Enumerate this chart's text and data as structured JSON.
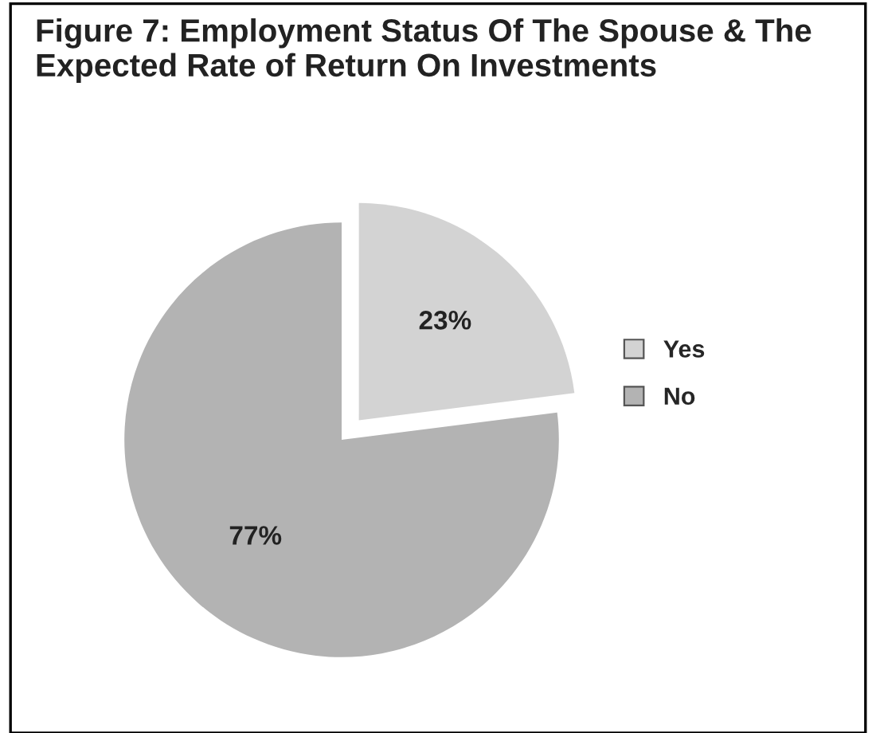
{
  "chart_data": {
    "type": "pie",
    "title": "Figure 7: Employment Status Of The Spouse & The Expected Rate of Return On Investments",
    "categories": [
      "Yes",
      "No"
    ],
    "values": [
      23,
      77
    ],
    "colors": [
      "#d3d3d3",
      "#b3b3b3"
    ],
    "value_labels": [
      "23%",
      "77%"
    ],
    "legend": "right"
  }
}
